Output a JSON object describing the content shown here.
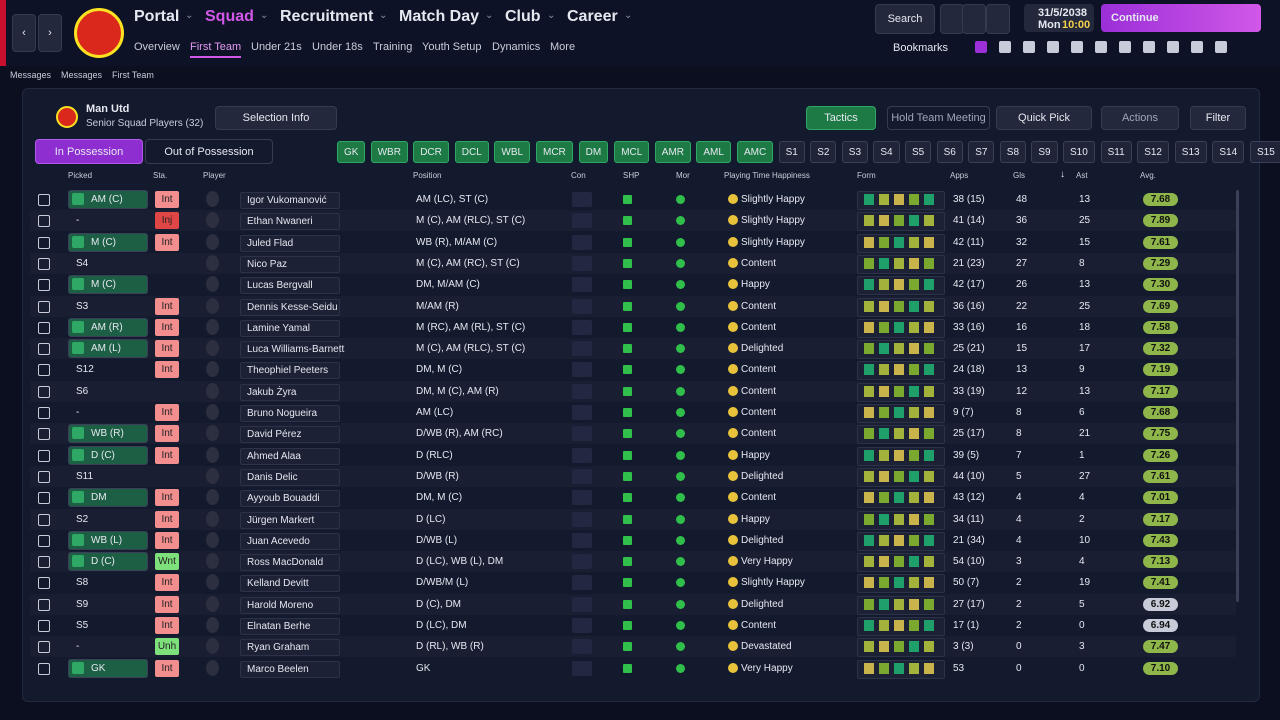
{
  "nav": {
    "tabs": [
      "Portal",
      "Squad",
      "Recruitment",
      "Match Day",
      "Club",
      "Career"
    ],
    "subtabs": [
      "Overview",
      "First Team",
      "Under 21s",
      "Under 18s",
      "Training",
      "Youth Setup",
      "Dynamics",
      "More"
    ],
    "search": "Search",
    "date": "31/5/2038",
    "day": "Mon",
    "time": "10:00",
    "continue": "Continue",
    "bookmarks": "Bookmarks"
  },
  "breadcrumb": [
    "Messages",
    "Messages",
    "First Team"
  ],
  "team": {
    "name": "Man Utd",
    "subtitle": "Senior Squad Players (32)",
    "selection_info": "Selection Info",
    "tactics": "Tactics",
    "meeting": "Hold Team Meeting",
    "quick_pick": "Quick Pick",
    "actions": "Actions",
    "filter": "Filter",
    "in_possession": "In Possession",
    "out_possession": "Out of Possession"
  },
  "positions": [
    "GK",
    "WBR",
    "DCR",
    "DCL",
    "WBL",
    "MCR",
    "DM",
    "MCL",
    "AMR",
    "AML",
    "AMC",
    "S1",
    "S2",
    "S3",
    "S4",
    "S5",
    "S6",
    "S7",
    "S8",
    "S9",
    "S10",
    "S11",
    "S12",
    "S13",
    "S14",
    "S15"
  ],
  "table": {
    "columns": [
      "Picked",
      "Sta.",
      "Player",
      "Position",
      "Con",
      "SHP",
      "Mor",
      "Playing Time Happiness",
      "Form",
      "Apps",
      "Gls",
      "Ast",
      "Avg."
    ],
    "rows": [
      [
        "AM (C)",
        "Int",
        "Igor Vukomanović",
        "AM (LC), ST (C)",
        "Slightly Happy",
        "38 (15)",
        48,
        13,
        "7.68"
      ],
      [
        "-",
        "Inj",
        "Ethan Nwaneri",
        "M (C), AM (RLC), ST (C)",
        "Slightly Happy",
        "41 (14)",
        36,
        25,
        "7.89"
      ],
      [
        "M (C)",
        "Int",
        "Juled Flad",
        "WB (R), M/AM (C)",
        "Slightly Happy",
        "42 (11)",
        32,
        15,
        "7.61"
      ],
      [
        "S4",
        "",
        "Nico Paz",
        "M (C), AM (RC), ST (C)",
        "Content",
        "21 (23)",
        27,
        8,
        "7.29"
      ],
      [
        "M (C)",
        "",
        "Lucas Bergvall",
        "DM, M/AM (C)",
        "Happy",
        "42 (17)",
        26,
        13,
        "7.30"
      ],
      [
        "S3",
        "Int",
        "Dennis Kesse-Seidu",
        "M/AM (R)",
        "Content",
        "36 (16)",
        22,
        25,
        "7.69"
      ],
      [
        "AM (R)",
        "Int",
        "Lamine Yamal",
        "M (RC), AM (RL), ST (C)",
        "Content",
        "33 (16)",
        16,
        18,
        "7.58"
      ],
      [
        "AM (L)",
        "Int",
        "Luca Williams-Barnett",
        "M (C), AM (RLC), ST (C)",
        "Delighted",
        "25 (21)",
        15,
        17,
        "7.32"
      ],
      [
        "S12",
        "Int",
        "Theophiel Peeters",
        "DM, M (C)",
        "Content",
        "24 (18)",
        13,
        9,
        "7.19"
      ],
      [
        "S6",
        "",
        "Jakub Żyra",
        "DM, M (C), AM (R)",
        "Content",
        "33 (19)",
        12,
        13,
        "7.17"
      ],
      [
        "-",
        "Int",
        "Bruno Nogueira",
        "AM (LC)",
        "Content",
        "9 (7)",
        8,
        6,
        "7.68"
      ],
      [
        "WB (R)",
        "Int",
        "David Pérez",
        "D/WB (R), AM (RC)",
        "Content",
        "25 (17)",
        8,
        21,
        "7.75"
      ],
      [
        "D (C)",
        "Int",
        "Ahmed Alaa",
        "D (RLC)",
        "Happy",
        "39 (5)",
        7,
        1,
        "7.26"
      ],
      [
        "S11",
        "",
        "Danis Delic",
        "D/WB (R)",
        "Delighted",
        "44 (10)",
        5,
        27,
        "7.61"
      ],
      [
        "DM",
        "Int",
        "Ayyoub Bouaddi",
        "DM, M (C)",
        "Content",
        "43 (12)",
        4,
        4,
        "7.01"
      ],
      [
        "S2",
        "Int",
        "Jürgen Markert",
        "D (LC)",
        "Happy",
        "34 (11)",
        4,
        2,
        "7.17"
      ],
      [
        "WB (L)",
        "Int",
        "Juan Acevedo",
        "D/WB (L)",
        "Delighted",
        "21 (34)",
        4,
        10,
        "7.43"
      ],
      [
        "D (C)",
        "Wnt",
        "Ross MacDonald",
        "D (LC), WB (L), DM",
        "Very Happy",
        "54 (10)",
        3,
        4,
        "7.13"
      ],
      [
        "S8",
        "Int",
        "Kelland Devitt",
        "D/WB/M (L)",
        "Slightly Happy",
        "50 (7)",
        2,
        19,
        "7.41"
      ],
      [
        "S9",
        "Int",
        "Harold Moreno",
        "D (C), DM",
        "Delighted",
        "27 (17)",
        2,
        5,
        "6.92"
      ],
      [
        "S5",
        "Int",
        "Elnatan Berhe",
        "D (LC), DM",
        "Content",
        "17 (1)",
        2,
        0,
        "6.94"
      ],
      [
        "-",
        "Unh",
        "Ryan Graham",
        "D (RL), WB (R)",
        "Devastated",
        "3 (3)",
        0,
        3,
        "7.47"
      ],
      [
        "GK",
        "Int",
        "Marco Beelen",
        "GK",
        "Very Happy",
        "53",
        0,
        0,
        "7.10"
      ]
    ]
  }
}
